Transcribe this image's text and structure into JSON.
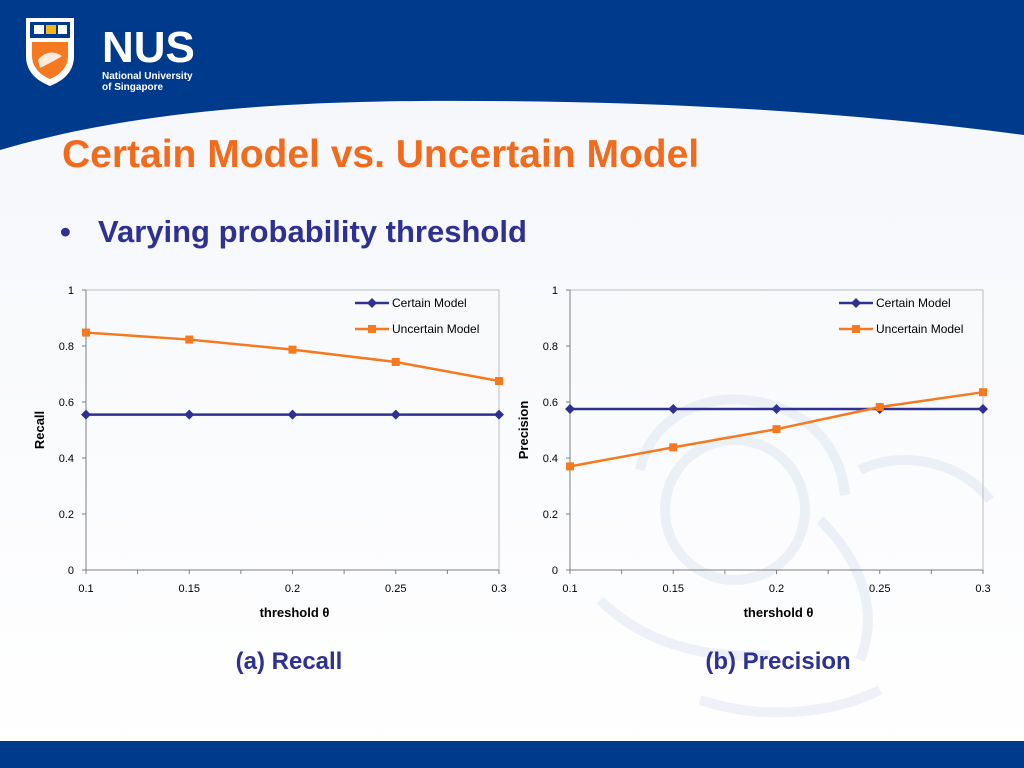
{
  "logo": {
    "name": "NUS",
    "subtitle_line1": "National University",
    "subtitle_line2": "of Singapore"
  },
  "slide": {
    "title": "Certain Model vs. Uncertain Model",
    "bullet": "Varying probability threshold",
    "captions": [
      "(a) Recall",
      "(b) Precision"
    ]
  },
  "colors": {
    "title": "#f26b1d",
    "accent_blue": "#2e3192",
    "header_blue": "#003a8c",
    "certain_series": "#2e3192",
    "uncertain_series": "#f47920"
  },
  "chart_data": [
    {
      "type": "line",
      "x": [
        0.1,
        0.15,
        0.2,
        0.25,
        0.3
      ],
      "x_tick_labels": [
        "0.1",
        "0.15",
        "0.2",
        "0.25",
        "0.3"
      ],
      "y_tick_labels": [
        "0",
        "0.2",
        "0.4",
        "0.6",
        "0.8",
        "1"
      ],
      "xlabel": "threshold θ",
      "ylabel": "Recall",
      "ylim": [
        0,
        1
      ],
      "grid": false,
      "legend": "top-right",
      "series": [
        {
          "name": "Certain Model",
          "values": [
            0.555,
            0.555,
            0.555,
            0.555,
            0.555
          ],
          "marker": "diamond"
        },
        {
          "name": "Uncertain Model",
          "values": [
            0.848,
            0.823,
            0.787,
            0.743,
            0.675
          ],
          "marker": "square"
        }
      ]
    },
    {
      "type": "line",
      "x": [
        0.1,
        0.15,
        0.2,
        0.25,
        0.3
      ],
      "x_tick_labels": [
        "0.1",
        "0.15",
        "0.2",
        "0.25",
        "0.3"
      ],
      "y_tick_labels": [
        "0",
        "0.2",
        "0.4",
        "0.6",
        "0.8",
        "1"
      ],
      "xlabel": "thershold θ",
      "ylabel": "Precision",
      "ylim": [
        0,
        1
      ],
      "grid": false,
      "legend": "top-right",
      "series": [
        {
          "name": "Certain Model",
          "values": [
            0.575,
            0.575,
            0.575,
            0.575,
            0.575
          ],
          "marker": "diamond"
        },
        {
          "name": "Uncertain Model",
          "values": [
            0.37,
            0.438,
            0.503,
            0.582,
            0.635
          ],
          "marker": "square"
        }
      ]
    }
  ]
}
